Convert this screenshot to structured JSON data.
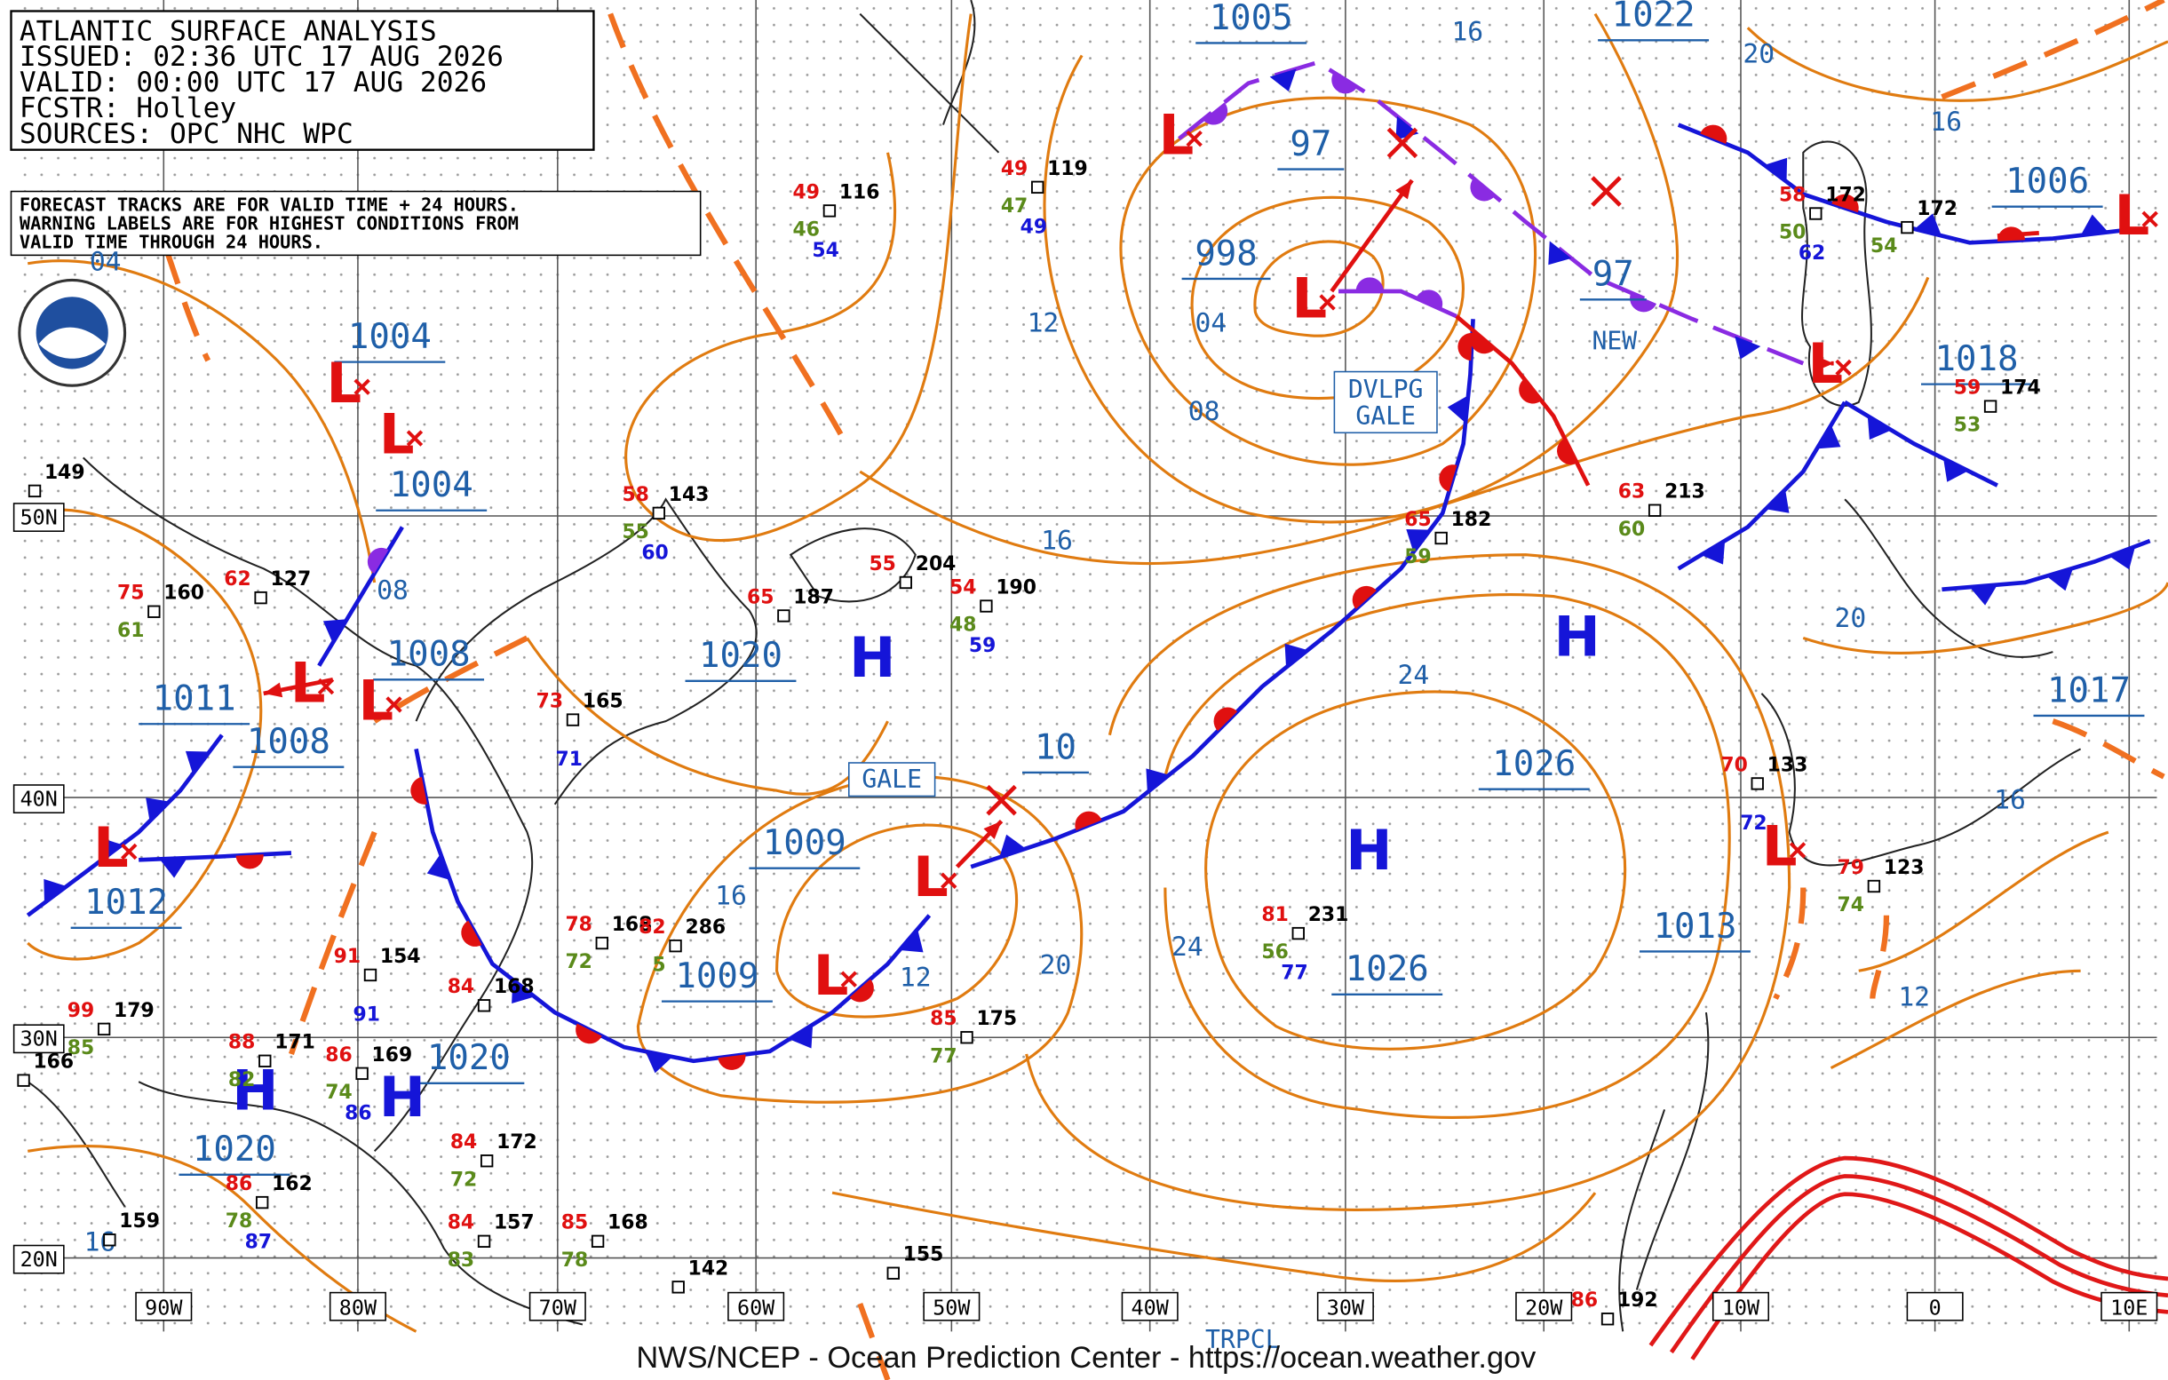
{
  "header": {
    "title": "ATLANTIC SURFACE ANALYSIS",
    "issued": "ISSUED: 02:36 UTC 17 AUG 2026",
    "valid": "VALID:  00:00 UTC 17 AUG 2026",
    "forecaster": "FCSTR:  Holley",
    "sources": "SOURCES: OPC NHC WPC"
  },
  "notice": [
    "FORECAST TRACKS ARE FOR VALID TIME + 24 HOURS.",
    "WARNING LABELS ARE FOR HIGHEST CONDITIONS FROM",
    "VALID TIME THROUGH 24 HOURS."
  ],
  "pressure_centers": [
    "1005",
    "1022",
    "97",
    "998",
    "97",
    "1004",
    "1004",
    "1008",
    "1011",
    "1008",
    "1012",
    "1020",
    "1009",
    "1009",
    "10",
    "1020",
    "1020",
    "1026",
    "1026",
    "1013",
    "1018",
    "1006",
    "1017"
  ],
  "isobar_labels": [
    "16",
    "20",
    "12",
    "04",
    "08",
    "16",
    "16",
    "08",
    "16",
    "12",
    "20",
    "24",
    "24",
    "20",
    "16",
    "12",
    "16",
    "04"
  ],
  "high_symbol": "H",
  "low_symbol": "L",
  "warnings": {
    "dvlpg_gale": [
      "DVLPG",
      "GALE"
    ],
    "gale": "GALE",
    "new": "NEW",
    "tropical": "TRPCL"
  },
  "latitudes": [
    "50N",
    "40N",
    "30N",
    "20N"
  ],
  "longitudes": [
    "90W",
    "80W",
    "70W",
    "60W",
    "50W",
    "40W",
    "30W",
    "20W",
    "10W",
    "0",
    "10E"
  ],
  "stations": [
    {
      "pressure": "149"
    },
    {
      "pressure": "160",
      "temperature": "75",
      "dewpoint": "61"
    },
    {
      "pressure": "127",
      "temperature": "62"
    },
    {
      "pressure": "143",
      "temperature": "58",
      "dewpoint": "55",
      "extra": "60"
    },
    {
      "pressure": "187",
      "temperature": "65"
    },
    {
      "pressure": "204",
      "temperature": "55"
    },
    {
      "pressure": "190",
      "temperature": "54",
      "dewpoint": "48",
      "extra": "59"
    },
    {
      "pressure": "165",
      "temperature": "73",
      "extra": "71"
    },
    {
      "pressure": "168",
      "temperature": "78",
      "dewpoint": "72"
    },
    {
      "pressure": "286",
      "temperature": "82",
      "dewpoint": "5"
    },
    {
      "pressure": "154",
      "temperature": "91",
      "extra": "91"
    },
    {
      "pressure": "168",
      "temperature": "84"
    },
    {
      "pressure": "179",
      "temperature": "99",
      "dewpoint": "85"
    },
    {
      "pressure": "171",
      "temperature": "88",
      "dewpoint": "82"
    },
    {
      "pressure": "169",
      "temperature": "86",
      "dewpoint": "74",
      "extra": "86"
    },
    {
      "pressure": "172",
      "temperature": "84",
      "dewpoint": "72"
    },
    {
      "pressure": "162",
      "temperature": "86",
      "dewpoint": "78",
      "extra": "87"
    },
    {
      "pressure": "157",
      "temperature": "84",
      "dewpoint": "83"
    },
    {
      "pressure": "168",
      "temperature": "85",
      "dewpoint": "78"
    },
    {
      "pressure": "142"
    },
    {
      "pressure": "155"
    },
    {
      "pressure": "175",
      "temperature": "85",
      "dewpoint": "77"
    },
    {
      "pressure": "116",
      "temperature": "49",
      "dewpoint": "46",
      "extra": "54"
    },
    {
      "pressure": "119",
      "temperature": "49",
      "dewpoint": "47",
      "extra": "49"
    },
    {
      "pressure": "182",
      "temperature": "65",
      "dewpoint": "59"
    },
    {
      "pressure": "213",
      "temperature": "63",
      "dewpoint": "60"
    },
    {
      "pressure": "231",
      "temperature": "81",
      "dewpoint": "56",
      "extra": "77"
    },
    {
      "pressure": "133",
      "temperature": "70",
      "extra": "72"
    },
    {
      "pressure": "123",
      "temperature": "79",
      "dewpoint": "74"
    },
    {
      "pressure": "174",
      "temperature": "59",
      "dewpoint": "53"
    },
    {
      "pressure": "172",
      "temperature": "58",
      "dewpoint": "50",
      "extra": "62"
    },
    {
      "pressure": "172",
      "dewpoint": "54"
    },
    {
      "pressure": "192",
      "temperature": "86"
    },
    {
      "pressure": "159"
    },
    {
      "pressure": "166"
    }
  ],
  "footer": "NWS/NCEP - Ocean Prediction Center - https://ocean.weather.gov"
}
